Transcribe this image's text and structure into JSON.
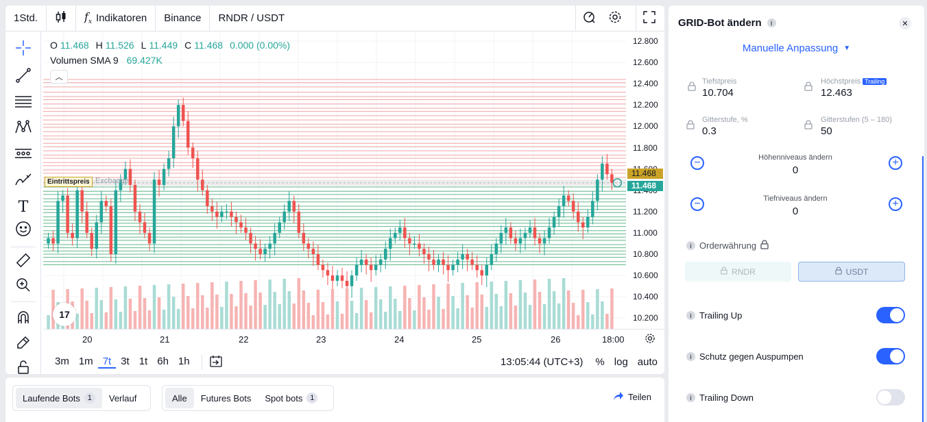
{
  "topbar": {
    "interval": "1Std.",
    "indicators_label": "Indikatoren",
    "exchange": "Binance",
    "pair": "RNDR / USDT"
  },
  "legend": {
    "o_label": "O",
    "o_value": "11.468",
    "h_label": "H",
    "h_value": "11.526",
    "l_label": "L",
    "l_value": "11.449",
    "c_label": "C",
    "c_value": "11.468",
    "change": "0.000 (0.00%)",
    "volume_label": "Volumen SMA 9",
    "volume_value": "69.427K"
  },
  "chart_data": {
    "type": "candlestick",
    "price_ticks": [
      "12.800",
      "12.600",
      "12.400",
      "12.200",
      "12.000",
      "11.800",
      "11.600",
      "11.400",
      "11.200",
      "11.000",
      "10.800",
      "10.600",
      "10.400",
      "10.200"
    ],
    "time_ticks": [
      "20",
      "21",
      "22",
      "23",
      "24",
      "25",
      "26",
      "18:00"
    ],
    "current_price_label": "11.468",
    "last_price_label": "11.468",
    "entry_label": "Eintrittspreis",
    "exchange_line_label": "Exchange",
    "ylim": [
      10.1,
      12.85
    ],
    "grid_upper": [
      12.44,
      12.41,
      12.37,
      12.32,
      12.28,
      12.25,
      12.21,
      12.17,
      12.14,
      12.1,
      12.06,
      12.02,
      11.99,
      11.95,
      11.91,
      11.88,
      11.84,
      11.81,
      11.77,
      11.73,
      11.7,
      11.66,
      11.63,
      11.59,
      11.56,
      11.52,
      11.49
    ],
    "grid_lower": [
      11.43,
      11.39,
      11.36,
      11.32,
      11.29,
      11.25,
      11.22,
      11.19,
      11.15,
      11.12,
      11.09,
      11.06,
      11.02,
      10.99,
      10.96,
      10.93,
      10.89,
      10.86,
      10.83,
      10.8,
      10.77,
      10.73,
      10.7
    ]
  },
  "timebar": {
    "ranges": [
      "3m",
      "1m",
      "7t",
      "3t",
      "1t",
      "6h",
      "1h"
    ],
    "active_range": "7t",
    "clock": "13:05:44 (UTC+3)",
    "percent": "%",
    "log": "log",
    "auto": "auto"
  },
  "bots": {
    "running": "Laufende Bots",
    "running_count": "1",
    "history": "Verlauf",
    "all": "Alle",
    "futures": "Futures Bots",
    "spot": "Spot bots",
    "spot_count": "1",
    "share": "Teilen"
  },
  "panel": {
    "title": "GRID-Bot ändern",
    "mode": "Manuelle Anpassung",
    "low_label": "Tiefstpreis",
    "low_value": "10.704",
    "high_label": "Höchstpreis",
    "high_badge": "Trailing",
    "high_value": "12.463",
    "step_label": "Gitterstufe, %",
    "step_value": "0.3",
    "levels_label": "Gitterstufen (5 – 180)",
    "levels_value": "50",
    "up_levels_label": "Höhenniveaus ändern",
    "up_levels_value": "0",
    "down_levels_label": "Tiefniveaus ändern",
    "down_levels_value": "0",
    "currency_label": "Orderwährung",
    "currency_a": "RNDR",
    "currency_b": "USDT",
    "trailing_up": "Trailing Up",
    "trailing_up_on": true,
    "pump_protect": "Schutz gegen Auspumpen",
    "pump_protect_on": true,
    "trailing_down": "Trailing Down",
    "trailing_down_on": false
  },
  "colors": {
    "accent": "#2962ff",
    "up": "#26a69a",
    "down": "#ef5350",
    "grid_upper": "#f0a4a4",
    "grid_lower": "#62b88a",
    "price_tag": "#c9a227"
  }
}
